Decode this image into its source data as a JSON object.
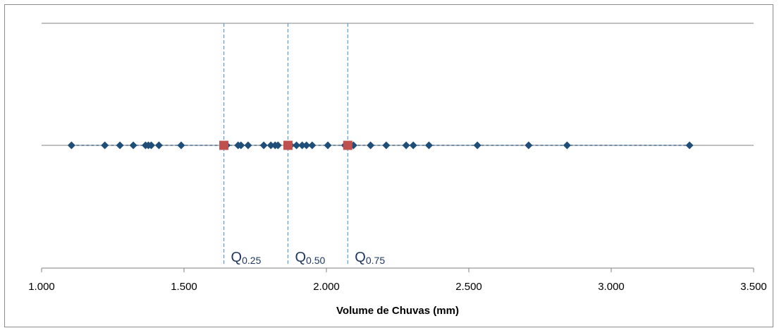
{
  "chart_data": {
    "type": "scatter",
    "title": "",
    "xlabel": "Volume de Chuvas (mm)",
    "ylabel": "",
    "xlim": [
      1000,
      3500
    ],
    "x_ticks": [
      1000,
      1500,
      2000,
      2500,
      3000,
      3500
    ],
    "x_tick_labels": [
      "1.000",
      "1.500",
      "2.000",
      "2.500",
      "3.000",
      "3.500"
    ],
    "grid": false,
    "series": [
      {
        "marker": "diamond",
        "color": "#1f4e79",
        "x": [
          1105,
          1222,
          1275,
          1322,
          1365,
          1375,
          1385,
          1412,
          1490,
          1650,
          1690,
          1700,
          1725,
          1780,
          1805,
          1820,
          1830,
          1865,
          1875,
          1895,
          1915,
          1930,
          1950,
          2005,
          2065,
          2080,
          2095,
          2155,
          2210,
          2280,
          2305,
          2360,
          2530,
          2710,
          2845,
          3275
        ]
      },
      {
        "marker": "square",
        "color": "#c0504d",
        "x": [
          1640,
          1865,
          2075
        ]
      }
    ],
    "quantiles": [
      {
        "name": "Q",
        "sub": "0.25",
        "x": 1640
      },
      {
        "name": "Q",
        "sub": "0.50",
        "x": 1865
      },
      {
        "name": "Q",
        "sub": "0.75",
        "x": 2075
      }
    ],
    "colors": {
      "points": "#1f4e79",
      "quantile_markers": "#c0504d",
      "quantile_lines": "#5b9bd5",
      "quantile_text": "#1f3864",
      "axis": "#808080"
    }
  }
}
